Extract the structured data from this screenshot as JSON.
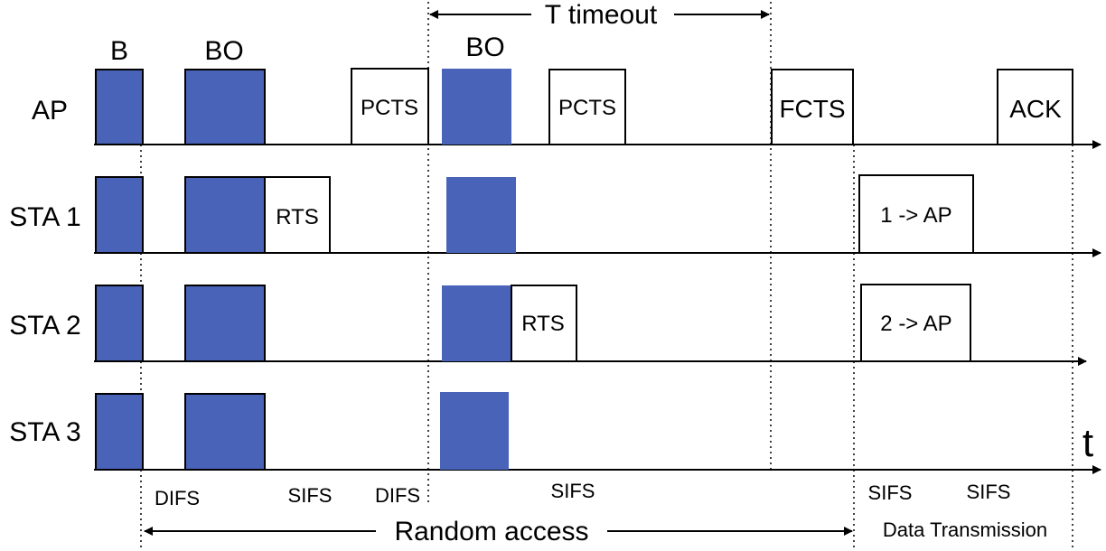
{
  "colors": {
    "filled": "#4863b7",
    "outline": "#000000"
  },
  "header": {
    "timeout_label": "T timeout"
  },
  "top_labels": {
    "beacon": "B",
    "backoff_1": "BO",
    "backoff_2": "BO"
  },
  "rows": [
    {
      "label": "AP"
    },
    {
      "label": "STA 1"
    },
    {
      "label": "STA 2"
    },
    {
      "label": "STA 3"
    }
  ],
  "frames": {
    "ap_pcts_1": "PCTS",
    "ap_pcts_2": "PCTS",
    "ap_fcts": "FCTS",
    "ap_ack": "ACK",
    "sta1_rts": "RTS",
    "sta1_data": "1 -> AP",
    "sta2_rts": "RTS",
    "sta2_data": "2 -> AP"
  },
  "axis_symbol": "t",
  "intervals": {
    "difs_1": "DIFS",
    "sifs_1": "SIFS",
    "difs_2": "DIFS",
    "sifs_2": "SIFS",
    "sifs_3": "SIFS",
    "sifs_4": "SIFS"
  },
  "phases": {
    "random_access": "Random access",
    "data_transmission": "Data Transmission"
  }
}
